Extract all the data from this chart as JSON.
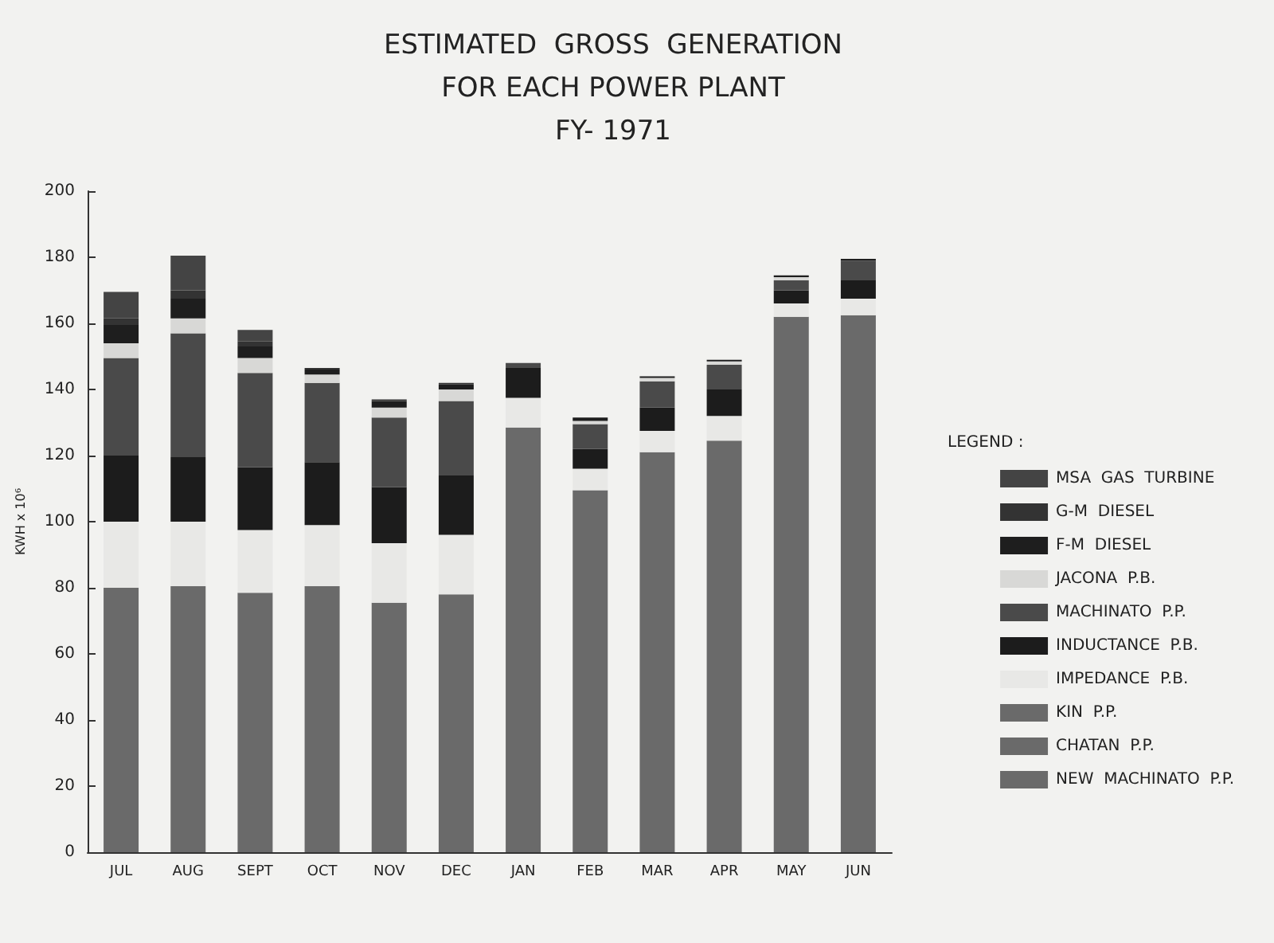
{
  "chart_data": {
    "type": "bar",
    "title": "ESTIMATED  GROSS  GENERATION\nFOR EACH POWER PLANT\nFY- 1971",
    "ylabel": "KWH x 10⁶",
    "legend_title": "LEGEND :",
    "legend": "right",
    "stacked": true,
    "grid": false,
    "ylim": [
      0,
      200
    ],
    "yticks": [
      0,
      20,
      40,
      60,
      80,
      100,
      120,
      140,
      160,
      180,
      200
    ],
    "categories": [
      "JUL",
      "AUG",
      "SEPT",
      "OCT",
      "NOV",
      "DEC",
      "JAN",
      "FEB",
      "MAR",
      "APR",
      "MAY",
      "JUN"
    ],
    "series": [
      {
        "name": "NEW  MACHINATO  P.P.",
        "color": "#6a6a6a",
        "values": [
          80,
          80.5,
          78.5,
          80.5,
          75.5,
          78,
          128.5,
          109.5,
          121,
          124.5,
          162,
          162.5
        ]
      },
      {
        "name": "CHATAN  P.P.",
        "color": "#6a6a6a",
        "values": [
          null,
          null,
          null,
          null,
          null,
          null,
          null,
          null,
          null,
          null,
          null,
          null
        ]
      },
      {
        "name": "KIN  P.P.",
        "color": "#6a6a6a",
        "values": [
          null,
          null,
          null,
          null,
          null,
          null,
          null,
          null,
          null,
          null,
          null,
          null
        ]
      },
      {
        "name": "IMPEDANCE  P.B.",
        "color": "#e8e8e6",
        "values": [
          20,
          19.5,
          19,
          18.5,
          18,
          18,
          9,
          6.5,
          6.5,
          7.5,
          4,
          5
        ]
      },
      {
        "name": "INDUCTANCE  P.B.",
        "color": "#1c1c1c",
        "values": [
          20,
          19.5,
          19,
          19,
          17,
          18,
          9,
          6,
          7,
          8,
          4,
          5.5
        ]
      },
      {
        "name": "MACHINATO  P.P.",
        "color": "#4a4a4a",
        "values": [
          29.5,
          37.5,
          28.5,
          24,
          21,
          22.5,
          1.5,
          7.5,
          8,
          7.5,
          3,
          6
        ]
      },
      {
        "name": "JACONA  P.B.",
        "color": "#d8d8d6",
        "values": [
          4.5,
          4.5,
          4.5,
          2.5,
          3,
          3.5,
          null,
          1,
          1,
          1,
          1,
          null
        ]
      },
      {
        "name": "F-M  DIESEL",
        "color": "#1e1e1e",
        "values": [
          5.5,
          6,
          3.5,
          1.5,
          2,
          1.5,
          null,
          1,
          0.5,
          0.5,
          0.5,
          0.5
        ]
      },
      {
        "name": "G-M  DIESEL",
        "color": "#333333",
        "values": [
          2,
          2.5,
          1.5,
          0.5,
          0.5,
          0.5,
          null,
          null,
          null,
          null,
          null,
          null
        ]
      },
      {
        "name": "MSA  GAS  TURBINE",
        "color": "#444444",
        "values": [
          8,
          10.5,
          3.5,
          null,
          null,
          null,
          null,
          null,
          null,
          null,
          null,
          null
        ]
      }
    ]
  }
}
